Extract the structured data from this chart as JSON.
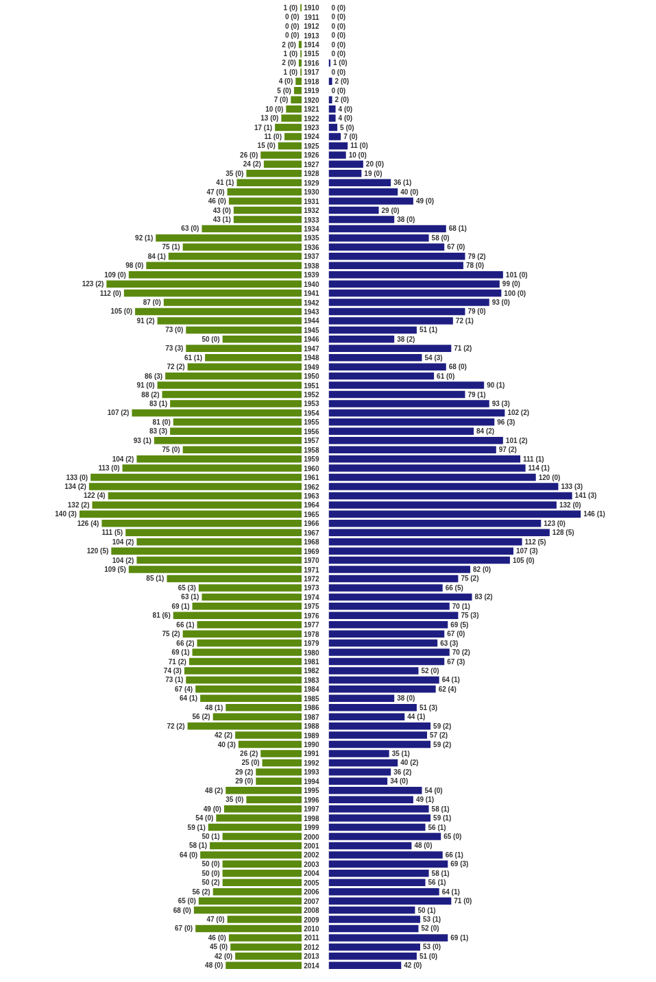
{
  "chart_data": [
    {
      "type": "bar",
      "orientation": "horizontal",
      "tick_labels": false,
      "grid": false,
      "categories": [
        "1910",
        "1911",
        "1912",
        "1913",
        "1914",
        "1915",
        "1916",
        "1917",
        "1918",
        "1919",
        "1920",
        "1921",
        "1922",
        "1923",
        "1924",
        "1925",
        "1926",
        "1927",
        "1928",
        "1929",
        "1930",
        "1931",
        "1932",
        "1933",
        "1934",
        "1935",
        "1936",
        "1937",
        "1938",
        "1939",
        "1940",
        "1941",
        "1942",
        "1943",
        "1944",
        "1945",
        "1946",
        "1947",
        "1948",
        "1949",
        "1950",
        "1951",
        "1952",
        "1953",
        "1954",
        "1955",
        "1956",
        "1957",
        "1958",
        "1959",
        "1960",
        "1961",
        "1962",
        "1963",
        "1964",
        "1965",
        "1966",
        "1967",
        "1968",
        "1969",
        "1970",
        "1971",
        "1972",
        "1973",
        "1974",
        "1975",
        "1976",
        "1977",
        "1978",
        "1979",
        "1980",
        "1981",
        "1982",
        "1983",
        "1984",
        "1985",
        "1986",
        "1987",
        "1988",
        "1989",
        "1990",
        "1991",
        "1992",
        "1993",
        "1994",
        "1995",
        "1996",
        "1997",
        "1998",
        "1999",
        "2000",
        "2001",
        "2002",
        "2003",
        "2004",
        "2005",
        "2006",
        "2007",
        "2008",
        "2009",
        "2010",
        "2011",
        "2012",
        "2013",
        "2014"
      ],
      "color": "#5b8a0e",
      "values": [
        1,
        0,
        0,
        0,
        2,
        1,
        2,
        1,
        4,
        5,
        7,
        10,
        13,
        17,
        11,
        15,
        26,
        24,
        35,
        41,
        47,
        46,
        43,
        43,
        63,
        92,
        75,
        84,
        98,
        109,
        123,
        112,
        87,
        105,
        91,
        73,
        50,
        73,
        61,
        72,
        86,
        91,
        88,
        83,
        107,
        81,
        83,
        93,
        75,
        104,
        113,
        133,
        134,
        122,
        132,
        140,
        126,
        111,
        104,
        120,
        104,
        109,
        85,
        65,
        63,
        69,
        81,
        66,
        75,
        66,
        69,
        71,
        74,
        73,
        67,
        64,
        48,
        56,
        72,
        42,
        40,
        26,
        25,
        29,
        29,
        48,
        35,
        49,
        54,
        59,
        50,
        58,
        64,
        50,
        50,
        50,
        56,
        65,
        68,
        47,
        67,
        46,
        45,
        42,
        48
      ],
      "value_labels": [
        "1 (0)",
        "0 (0)",
        "0 (0)",
        "0 (0)",
        "2 (0)",
        "1 (0)",
        "2 (0)",
        "1 (0)",
        "4 (0)",
        "5 (0)",
        "7 (0)",
        "10 (0)",
        "13 (0)",
        "17 (1)",
        "11 (0)",
        "15 (0)",
        "26 (0)",
        "24 (2)",
        "35 (0)",
        "41 (1)",
        "47 (0)",
        "46 (0)",
        "43 (0)",
        "43 (1)",
        "63 (0)",
        "92 (1)",
        "75 (1)",
        "84 (1)",
        "98 (0)",
        "109 (0)",
        "123 (2)",
        "112 (0)",
        "87 (0)",
        "105 (0)",
        "91 (2)",
        "73 (0)",
        "50 (0)",
        "73 (3)",
        "61 (1)",
        "72 (2)",
        "86 (3)",
        "91 (0)",
        "88 (2)",
        "83 (1)",
        "107 (2)",
        "81 (0)",
        "83 (3)",
        "93 (1)",
        "75 (0)",
        "104 (2)",
        "113 (0)",
        "133 (0)",
        "134 (2)",
        "122 (4)",
        "132 (2)",
        "140 (3)",
        "126 (4)",
        "111 (5)",
        "104 (2)",
        "120 (5)",
        "104 (2)",
        "109 (5)",
        "85 (1)",
        "65 (3)",
        "63 (1)",
        "69 (1)",
        "81 (6)",
        "66 (1)",
        "75 (2)",
        "66 (2)",
        "69 (1)",
        "71 (2)",
        "74 (3)",
        "73 (1)",
        "67 (4)",
        "64 (1)",
        "48 (1)",
        "56 (2)",
        "72 (2)",
        "42 (2)",
        "40 (3)",
        "26 (2)",
        "25 (0)",
        "29 (2)",
        "29 (0)",
        "48 (2)",
        "35 (0)",
        "49 (0)",
        "54 (0)",
        "59 (1)",
        "50 (1)",
        "58 (1)",
        "64 (0)",
        "50 (0)",
        "50 (0)",
        "50 (2)",
        "56 (2)",
        "65 (0)",
        "68 (0)",
        "47 (0)",
        "67 (0)",
        "46 (0)",
        "45 (0)",
        "42 (0)",
        "48 (0)"
      ]
    },
    {
      "type": "bar",
      "orientation": "horizontal",
      "tick_labels": "y",
      "grid": false,
      "categories": [
        "1910",
        "1911",
        "1912",
        "1913",
        "1914",
        "1915",
        "1916",
        "1917",
        "1918",
        "1919",
        "1920",
        "1921",
        "1922",
        "1923",
        "1924",
        "1925",
        "1926",
        "1927",
        "1928",
        "1929",
        "1930",
        "1931",
        "1932",
        "1933",
        "1934",
        "1935",
        "1936",
        "1937",
        "1938",
        "1939",
        "1940",
        "1941",
        "1942",
        "1943",
        "1944",
        "1945",
        "1946",
        "1947",
        "1948",
        "1949",
        "1950",
        "1951",
        "1952",
        "1953",
        "1954",
        "1955",
        "1956",
        "1957",
        "1958",
        "1959",
        "1960",
        "1961",
        "1962",
        "1963",
        "1964",
        "1965",
        "1966",
        "1967",
        "1968",
        "1969",
        "1970",
        "1971",
        "1972",
        "1973",
        "1974",
        "1975",
        "1976",
        "1977",
        "1978",
        "1979",
        "1980",
        "1981",
        "1982",
        "1983",
        "1984",
        "1985",
        "1986",
        "1987",
        "1988",
        "1989",
        "1990",
        "1991",
        "1992",
        "1993",
        "1994",
        "1995",
        "1996",
        "1997",
        "1998",
        "1999",
        "2000",
        "2001",
        "2002",
        "2003",
        "2004",
        "2005",
        "2006",
        "2007",
        "2008",
        "2009",
        "2010",
        "2011",
        "2012",
        "2013",
        "2014"
      ],
      "color": "#1e1e82",
      "values": [
        0,
        0,
        0,
        0,
        0,
        0,
        1,
        0,
        2,
        0,
        2,
        4,
        4,
        5,
        7,
        11,
        10,
        20,
        19,
        36,
        40,
        49,
        29,
        38,
        68,
        58,
        67,
        79,
        78,
        101,
        99,
        100,
        93,
        79,
        72,
        51,
        38,
        71,
        54,
        68,
        61,
        90,
        79,
        93,
        102,
        96,
        84,
        101,
        97,
        111,
        114,
        120,
        133,
        141,
        132,
        146,
        123,
        128,
        112,
        107,
        105,
        82,
        75,
        66,
        83,
        70,
        75,
        69,
        67,
        63,
        70,
        67,
        52,
        64,
        62,
        38,
        51,
        44,
        59,
        57,
        59,
        35,
        40,
        36,
        34,
        54,
        49,
        58,
        59,
        56,
        65,
        48,
        66,
        69,
        58,
        56,
        64,
        71,
        50,
        53,
        52,
        69,
        53,
        51,
        42
      ],
      "value_labels": [
        "0 (0)",
        "0 (0)",
        "0 (0)",
        "0 (0)",
        "0 (0)",
        "0 (0)",
        "1 (0)",
        "0 (0)",
        "2 (0)",
        "0 (0)",
        "2 (0)",
        "4 (0)",
        "4 (0)",
        "5 (0)",
        "7 (0)",
        "11 (0)",
        "10 (0)",
        "20 (0)",
        "19 (0)",
        "36 (1)",
        "40 (0)",
        "49 (0)",
        "29 (0)",
        "38 (0)",
        "68 (1)",
        "58 (0)",
        "67 (0)",
        "79 (2)",
        "78 (0)",
        "101 (0)",
        "99 (0)",
        "100 (0)",
        "93 (0)",
        "79 (0)",
        "72 (1)",
        "51 (1)",
        "38 (2)",
        "71 (2)",
        "54 (3)",
        "68 (0)",
        "61 (0)",
        "90 (1)",
        "79 (1)",
        "93 (3)",
        "102 (2)",
        "96 (3)",
        "84 (2)",
        "101 (2)",
        "97 (2)",
        "111 (1)",
        "114 (1)",
        "120 (0)",
        "133 (3)",
        "141 (3)",
        "132 (0)",
        "146 (1)",
        "123 (0)",
        "128 (5)",
        "112 (5)",
        "107 (3)",
        "105 (0)",
        "82 (0)",
        "75 (2)",
        "66 (5)",
        "83 (2)",
        "70 (1)",
        "75 (3)",
        "69 (5)",
        "67 (0)",
        "63 (3)",
        "70 (2)",
        "67 (3)",
        "52 (0)",
        "64 (1)",
        "62 (4)",
        "38 (0)",
        "51 (3)",
        "44 (1)",
        "59 (2)",
        "57 (2)",
        "59 (2)",
        "35 (1)",
        "40 (2)",
        "36 (2)",
        "34 (0)",
        "54 (0)",
        "49 (1)",
        "58 (1)",
        "59 (1)",
        "56 (1)",
        "65 (0)",
        "48 (0)",
        "66 (1)",
        "69 (3)",
        "58 (1)",
        "56 (1)",
        "64 (1)",
        "71 (0)",
        "50 (1)",
        "53 (1)",
        "52 (0)",
        "69 (1)",
        "53 (0)",
        "51 (0)",
        "42 (0)"
      ]
    }
  ]
}
